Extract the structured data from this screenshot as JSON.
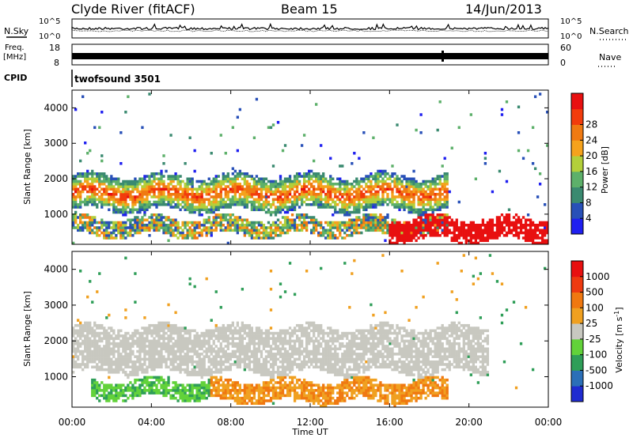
{
  "header": {
    "station": "Clyde River (fitACF)",
    "beam": "Beam 15",
    "date": "14/Jun/2013"
  },
  "nsky_panel": {
    "left_label": "N.Sky",
    "right_label": "N.Search",
    "ticks": [
      "10^5",
      "10^0"
    ],
    "right_ticks": [
      "10^5",
      "10^0"
    ]
  },
  "freq_panel": {
    "left_label_line1": "Freq.",
    "left_label_line2": "[MHz]",
    "left_ticks": [
      "18",
      "8"
    ],
    "right_ticks": [
      "60",
      "0"
    ],
    "right_label": "Nave"
  },
  "cpid": {
    "label": "CPID",
    "program": "twofsound 3501"
  },
  "chart_data": [
    {
      "type": "heatmap",
      "name": "power",
      "ylabel": "Slant Range [km]",
      "yticks": [
        "1000",
        "2000",
        "3000",
        "4000"
      ],
      "ylim": [
        150,
        4500
      ],
      "xlim": [
        "00:00",
        "24:00"
      ],
      "colorbar": {
        "label": "Power [dB]",
        "ticks": [
          "4",
          "8",
          "12",
          "16",
          "20",
          "24",
          "28"
        ],
        "colors": [
          "#1f1ff0",
          "#2850b8",
          "#3a8a70",
          "#5db06a",
          "#b3cf3a",
          "#f5a21c",
          "#f07a12",
          "#f23c0c",
          "#e81010"
        ]
      },
      "features": [
        {
          "desc": "main F-region band",
          "start": "00:00",
          "end": "19:00",
          "range_km": [
            1100,
            2100
          ],
          "level": "16-28 dB"
        },
        {
          "desc": "near-range band",
          "start": "00:00",
          "end": "19:00",
          "range_km": [
            400,
            900
          ],
          "level": "8-24 dB"
        },
        {
          "desc": "strong near-range echoes",
          "start": "16:00",
          "end": "24:00",
          "range_km": [
            250,
            900
          ],
          "level": "28 dB"
        }
      ]
    },
    {
      "type": "heatmap",
      "name": "velocity",
      "ylabel": "Slant Range [km]",
      "yticks": [
        "1000",
        "2000",
        "3000",
        "4000"
      ],
      "ylim": [
        150,
        4500
      ],
      "xlim": [
        "00:00",
        "24:00"
      ],
      "colorbar": {
        "label": "Velocity [m s-1]",
        "ticks": [
          "1000",
          "500",
          "100",
          "25",
          "-25",
          "-100",
          "-500",
          "-1000"
        ],
        "colors": [
          "#1f2bd0",
          "#2b6fb8",
          "#2f9e58",
          "#62d23a",
          "#c8c8c0",
          "#f0a020",
          "#f07810",
          "#ee3a10",
          "#e81010"
        ]
      },
      "features": [
        {
          "desc": "ground scatter band",
          "start": "00:00",
          "end": "21:00",
          "range_km": [
            1100,
            2400
          ],
          "level": "-25 to 25"
        },
        {
          "desc": "green echoes",
          "start": "01:00",
          "end": "07:00",
          "range_km": [
            400,
            900
          ],
          "level": "100"
        },
        {
          "desc": "orange echoes",
          "start": "07:00",
          "end": "19:00",
          "range_km": [
            300,
            900
          ],
          "level": "-100"
        }
      ]
    }
  ],
  "x_axis": {
    "label": "Time UT",
    "ticks": [
      "00:00",
      "04:00",
      "08:00",
      "12:00",
      "16:00",
      "20:00",
      "00:00"
    ]
  }
}
